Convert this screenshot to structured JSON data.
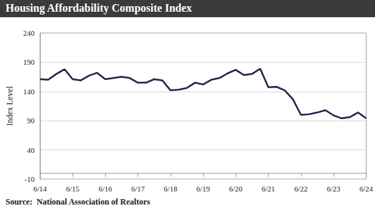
{
  "chart_data": {
    "type": "line",
    "title": "Housing Affordability Composite Index",
    "source": "Source:  National Association of Realtors",
    "y_label": "Index Level",
    "categories": [
      "6/14",
      null,
      null,
      null,
      "6/15",
      null,
      null,
      null,
      "6/16",
      null,
      null,
      null,
      "6/17",
      null,
      null,
      null,
      "6/18",
      null,
      null,
      null,
      "6/19",
      null,
      null,
      null,
      "6/20",
      null,
      null,
      null,
      "6/21",
      null,
      null,
      null,
      "6/22",
      null,
      null,
      null,
      "6/23",
      null,
      null,
      null,
      "6/24"
    ],
    "values": [
      161,
      160,
      170,
      178,
      161,
      159,
      167,
      172,
      161,
      163,
      165,
      163,
      155,
      155,
      161,
      159,
      142,
      143,
      146,
      155,
      152,
      160,
      163,
      171,
      177,
      168,
      170,
      179,
      147,
      148,
      142,
      127,
      100,
      101,
      104,
      108,
      99,
      94,
      96,
      104,
      94
    ],
    "color": "#1b2548",
    "ylim": [
      -10,
      240
    ],
    "yticks": [
      -10,
      40,
      90,
      140,
      190,
      240
    ],
    "grid": true
  }
}
